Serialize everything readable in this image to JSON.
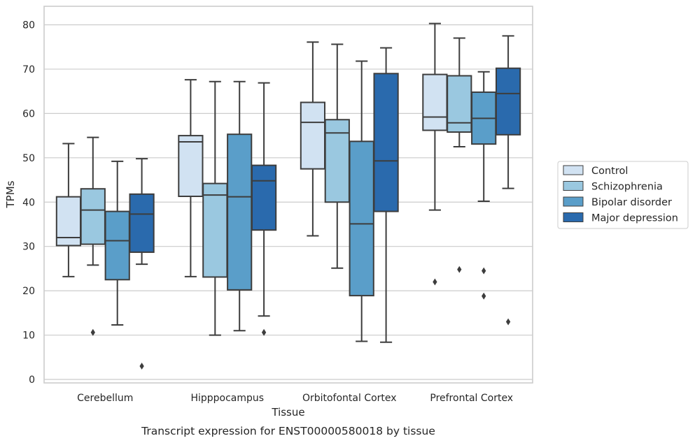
{
  "chart_data": {
    "type": "box",
    "caption": "Transcript expression for ENST00000580018 by tissue",
    "xlabel": "Tissue",
    "ylabel": "TPMs",
    "ylim": [
      -1,
      84
    ],
    "yticks": [
      0,
      10,
      20,
      30,
      40,
      50,
      60,
      70,
      80
    ],
    "grid": "horizontal",
    "legend_position": "right",
    "categories": [
      "Cerebellum",
      "Hipppocampus",
      "Orbitofontal Cortex",
      "Prefrontal Cortex"
    ],
    "series": [
      {
        "name": "Control",
        "color": "#d1e2f2",
        "boxes": [
          {
            "whisker_low": 23.2,
            "q1": 30.2,
            "median": 32.0,
            "q3": 41.2,
            "whisker_high": 53.2,
            "outliers": []
          },
          {
            "whisker_low": 23.2,
            "q1": 41.3,
            "median": 53.6,
            "q3": 55.0,
            "whisker_high": 67.6,
            "outliers": []
          },
          {
            "whisker_low": 32.4,
            "q1": 47.5,
            "median": 58.0,
            "q3": 62.5,
            "whisker_high": 76.1,
            "outliers": []
          },
          {
            "whisker_low": 38.2,
            "q1": 56.2,
            "median": 59.2,
            "q3": 68.8,
            "whisker_high": 80.3,
            "outliers": [
              22.0
            ]
          }
        ]
      },
      {
        "name": "Schizophrenia",
        "color": "#9ac8e0",
        "boxes": [
          {
            "whisker_low": 25.8,
            "q1": 30.5,
            "median": 38.2,
            "q3": 43.0,
            "whisker_high": 54.6,
            "outliers": [
              10.6
            ]
          },
          {
            "whisker_low": 10.0,
            "q1": 23.1,
            "median": 41.6,
            "q3": 44.2,
            "whisker_high": 67.2,
            "outliers": []
          },
          {
            "whisker_low": 25.1,
            "q1": 40.0,
            "median": 55.6,
            "q3": 58.6,
            "whisker_high": 75.6,
            "outliers": []
          },
          {
            "whisker_low": 52.5,
            "q1": 55.8,
            "median": 57.9,
            "q3": 68.5,
            "whisker_high": 77.0,
            "outliers": [
              24.8
            ]
          }
        ]
      },
      {
        "name": "Bipolar disorder",
        "color": "#5a9ec9",
        "boxes": [
          {
            "whisker_low": 12.3,
            "q1": 22.5,
            "median": 31.3,
            "q3": 37.9,
            "whisker_high": 49.2,
            "outliers": []
          },
          {
            "whisker_low": 11.0,
            "q1": 20.2,
            "median": 41.2,
            "q3": 55.3,
            "whisker_high": 67.2,
            "outliers": []
          },
          {
            "whisker_low": 8.6,
            "q1": 18.9,
            "median": 35.1,
            "q3": 53.7,
            "whisker_high": 71.8,
            "outliers": []
          },
          {
            "whisker_low": 40.2,
            "q1": 53.1,
            "median": 58.9,
            "q3": 64.8,
            "whisker_high": 69.4,
            "outliers": [
              24.5,
              18.8
            ]
          }
        ]
      },
      {
        "name": "Major depression",
        "color": "#2a6aad",
        "boxes": [
          {
            "whisker_low": 26.0,
            "q1": 28.7,
            "median": 37.3,
            "q3": 41.8,
            "whisker_high": 49.8,
            "outliers": [
              3.0
            ]
          },
          {
            "whisker_low": 14.3,
            "q1": 33.7,
            "median": 44.8,
            "q3": 48.3,
            "whisker_high": 66.9,
            "outliers": [
              10.6
            ]
          },
          {
            "whisker_low": 8.4,
            "q1": 37.9,
            "median": 49.3,
            "q3": 69.0,
            "whisker_high": 74.8,
            "outliers": []
          },
          {
            "whisker_low": 43.1,
            "q1": 55.2,
            "median": 64.5,
            "q3": 70.2,
            "whisker_high": 77.5,
            "outliers": [
              13.0
            ]
          }
        ]
      }
    ]
  }
}
